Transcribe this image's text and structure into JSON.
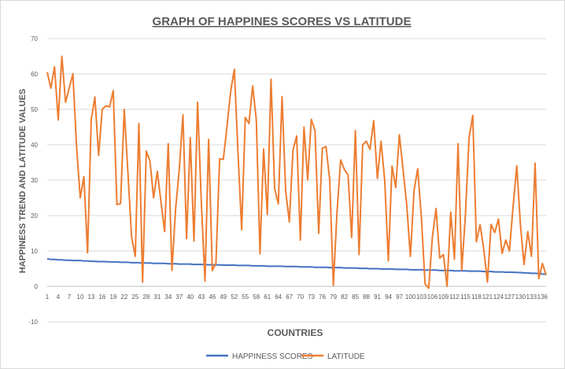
{
  "chart_data": {
    "type": "line",
    "title": "GRAPH OF HAPPINES SCORES  VS LATITUDE",
    "xlabel": "COUNTRIES",
    "ylabel": "HAPPINESS TREND AND LATITUDE VALUES",
    "ylim": [
      -10,
      70
    ],
    "y_ticks": [
      -10,
      0,
      10,
      20,
      30,
      40,
      50,
      60,
      70
    ],
    "x_tick_labels": [
      "1",
      "4",
      "7",
      "10",
      "13",
      "16",
      "19",
      "22",
      "25",
      "28",
      "31",
      "34",
      "37",
      "40",
      "43",
      "46",
      "49",
      "52",
      "55",
      "58",
      "61",
      "64",
      "67",
      "70",
      "73",
      "76",
      "79",
      "82",
      "85",
      "88",
      "91",
      "94",
      "97",
      "100",
      "103",
      "106",
      "109",
      "112",
      "115",
      "118",
      "121",
      "124",
      "127",
      "130",
      "133",
      "136"
    ],
    "grid": true,
    "legend_position": "bottom",
    "colors": {
      "happiness": "#4472C4",
      "latitude": "#ED7D31",
      "grid": "#d9d9d9",
      "text": "#595959"
    },
    "series": [
      {
        "name": "HAPPINESS SCORES",
        "values": [
          7.8,
          7.6,
          7.6,
          7.5,
          7.5,
          7.4,
          7.4,
          7.3,
          7.3,
          7.3,
          7.2,
          7.2,
          7.1,
          7.1,
          7.0,
          7.0,
          7.0,
          6.9,
          6.9,
          6.9,
          6.8,
          6.8,
          6.8,
          6.7,
          6.7,
          6.7,
          6.6,
          6.6,
          6.6,
          6.5,
          6.5,
          6.5,
          6.5,
          6.4,
          6.4,
          6.4,
          6.3,
          6.3,
          6.3,
          6.3,
          6.2,
          6.2,
          6.2,
          6.2,
          6.1,
          6.1,
          6.1,
          6.1,
          6.0,
          6.0,
          6.0,
          6.0,
          5.9,
          5.9,
          5.9,
          5.9,
          5.8,
          5.8,
          5.8,
          5.8,
          5.7,
          5.7,
          5.7,
          5.7,
          5.7,
          5.6,
          5.6,
          5.6,
          5.6,
          5.5,
          5.5,
          5.5,
          5.5,
          5.4,
          5.4,
          5.4,
          5.4,
          5.3,
          5.3,
          5.3,
          5.3,
          5.2,
          5.2,
          5.2,
          5.2,
          5.1,
          5.1,
          5.1,
          5.0,
          5.0,
          5.0,
          4.9,
          4.9,
          4.9,
          4.9,
          4.8,
          4.8,
          4.8,
          4.8,
          4.7,
          4.7,
          4.7,
          4.7,
          4.6,
          4.6,
          4.6,
          4.6,
          4.5,
          4.5,
          4.5,
          4.5,
          4.4,
          4.4,
          4.4,
          4.4,
          4.3,
          4.3,
          4.3,
          4.3,
          4.2,
          4.2,
          4.2,
          4.1,
          4.1,
          4.1,
          4.0,
          4.0,
          4.0,
          3.9,
          3.9,
          3.8,
          3.8,
          3.7,
          3.7,
          3.6,
          3.5,
          3.4
        ]
      },
      {
        "name": "LATITUDE",
        "values": [
          60.5,
          56,
          62,
          47,
          65,
          52,
          56,
          60.1,
          39.5,
          25,
          31,
          9.5,
          47,
          53.5,
          37,
          50,
          51,
          50.7,
          55.3,
          23.1,
          23.4,
          50,
          32,
          14,
          8.5,
          46,
          1.2,
          38.2,
          35.5,
          25,
          32.5,
          24,
          15.5,
          40.3,
          4.5,
          22,
          33,
          48.5,
          13.5,
          42,
          12.8,
          52,
          24,
          1.5,
          41.5,
          4.5,
          6.5,
          36,
          35.9,
          45,
          55,
          61.3,
          38,
          16,
          47.7,
          46,
          56.6,
          47,
          9.2,
          38.8,
          20.3,
          58.5,
          27.6,
          23.3,
          53.6,
          27,
          18.2,
          38.5,
          42.5,
          13.1,
          45,
          30.1,
          47.2,
          44,
          15,
          39,
          39.5,
          30,
          0.3,
          21,
          35.7,
          33,
          31.5,
          13.8,
          44,
          9,
          40,
          41,
          38.7,
          46.8,
          30.5,
          41,
          30,
          7.2,
          34,
          27.9,
          42.8,
          33,
          23,
          8.5,
          27,
          33.2,
          19.4,
          0.7,
          -0.5,
          14,
          22,
          8,
          9,
          0,
          21,
          7.7,
          40.3,
          4.6,
          20,
          42,
          48.3,
          12.6,
          17.4,
          10.5,
          1.2,
          17.5,
          15.2,
          19,
          9.3,
          13.1,
          10,
          22.5,
          34,
          17.3,
          6.2,
          15.5,
          8.5,
          34.8,
          2.2,
          6.5,
          3.2
        ]
      }
    ]
  }
}
